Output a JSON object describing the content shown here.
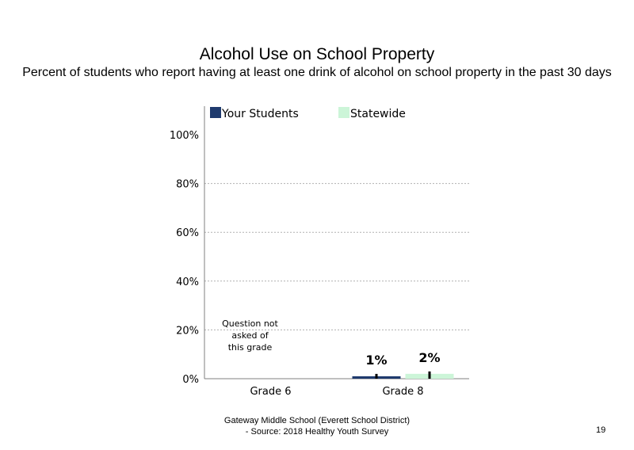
{
  "title": "Alcohol Use on School Property",
  "subtitle": "Percent of students who report having at least one drink of alcohol on school property in the past 30 days",
  "footer": {
    "line1": "Gateway Middle School (Everett School District)",
    "line2": "- Source: 2018 Healthy Youth Survey"
  },
  "page_number": "19",
  "chart_data": {
    "type": "bar",
    "categories": [
      "Grade 6",
      "Grade 8"
    ],
    "series": [
      {
        "name": "Your Students",
        "values": [
          null,
          1
        ],
        "labels": [
          "",
          "1%"
        ],
        "color": "#1f3b6e"
      },
      {
        "name": "Statewide",
        "values": [
          null,
          2
        ],
        "labels": [
          "",
          "2%"
        ],
        "color": "#ccf5d8"
      }
    ],
    "ylim": [
      0,
      100
    ],
    "yticks": [
      "0%",
      "20%",
      "40%",
      "60%",
      "80%",
      "100%"
    ],
    "gridlines": true,
    "legend": "top",
    "annotations": [
      {
        "category": "Grade 6",
        "text": [
          "Question not",
          "asked of",
          "this grade"
        ]
      }
    ]
  }
}
